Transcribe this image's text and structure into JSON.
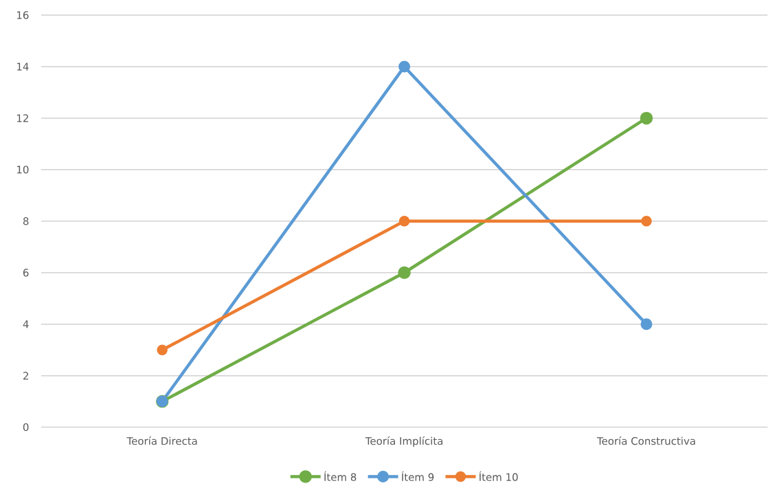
{
  "chart_data": {
    "type": "line",
    "categories": [
      "Teoría Directa",
      "Teoría Implícita",
      "Teoría Constructiva"
    ],
    "series": [
      {
        "name": "Ítem 8",
        "color": "#70ad47",
        "values": [
          1,
          6,
          12
        ]
      },
      {
        "name": "Ítem 9",
        "color": "#5b9bd5",
        "values": [
          1,
          14,
          4
        ]
      },
      {
        "name": "Ítem 10",
        "color": "#ed7d31",
        "values": [
          3,
          8,
          8
        ]
      }
    ],
    "ylim": [
      0,
      16
    ],
    "yticks": [
      0,
      2,
      4,
      6,
      8,
      10,
      12,
      14,
      16
    ],
    "grid": "y",
    "legend": "bottom",
    "marker": "circle",
    "line_style": "solid"
  }
}
